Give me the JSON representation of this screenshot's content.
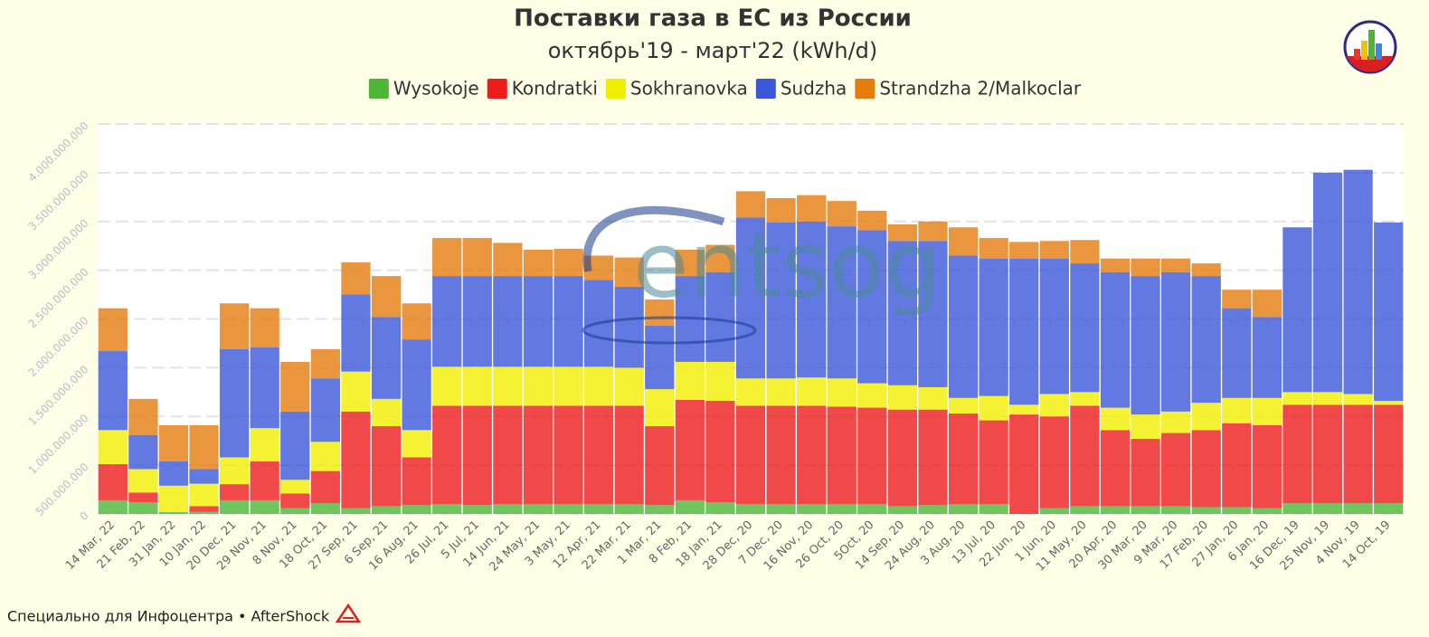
{
  "chart_data": {
    "type": "bar",
    "stacked": true,
    "title": "Поставки газа в ЕС из России",
    "subtitle": "октябрь'19 - март'22 (kWh/d)",
    "watermark": "entsog",
    "footer": "Специально для Инфоцентра • AfterShock",
    "categories": [
      "14 Mar, 22",
      "21 Feb, 22",
      "31 Jan, 22",
      "10 Jan, 22",
      "20 Dec, 21",
      "29 Nov, 21",
      "8 Nov, 21",
      "18 Oct, 21",
      "27 Sep, 21",
      "6 Sep, 21",
      "16 Aug, 21",
      "26 Jul, 21",
      "5 Jul, 21",
      "14 Jun, 21",
      "24 May, 21",
      "3 May, 21",
      "12 Apr, 21",
      "22 Mar, 21",
      "1 Mar, 21",
      "8 Feb, 21",
      "18 Jan, 21",
      "28 Dec, 20",
      "7 Dec, 20",
      "16 Nov, 20",
      "26 Oct, 20",
      "5Oct, 20",
      "14 Sep, 20",
      "24 Aug, 20",
      "3 Aug, 20",
      "13 Jul, 20",
      "22 Jun, 20",
      "1 Jun, 20",
      "11 May, 20",
      "20 Apr, 20",
      "30 Mar, 20",
      "9 Mar, 20",
      "17 Feb, 20",
      "27 Jan, 20",
      "6 Jan, 20",
      "16 Dec, 19",
      "25 Nov, 19",
      "4 Nov, 19",
      "14 Oct, 19"
    ],
    "series": [
      {
        "name": "Wysokoje",
        "color": "#4db636",
        "values": [
          140000000,
          120000000,
          20000000,
          20000000,
          140000000,
          140000000,
          60000000,
          110000000,
          60000000,
          80000000,
          90000000,
          100000000,
          90000000,
          100000000,
          100000000,
          100000000,
          100000000,
          100000000,
          90000000,
          140000000,
          120000000,
          100000000,
          100000000,
          100000000,
          100000000,
          100000000,
          80000000,
          90000000,
          100000000,
          100000000,
          0,
          60000000,
          80000000,
          80000000,
          80000000,
          80000000,
          70000000,
          70000000,
          60000000,
          110000000,
          110000000,
          110000000,
          110000000
        ]
      },
      {
        "name": "Kondratki",
        "color": "#ee1b1b",
        "values": [
          370000000,
          100000000,
          0,
          60000000,
          165000000,
          400000000,
          150000000,
          330000000,
          990000000,
          820000000,
          490000000,
          1010000000,
          1020000000,
          1010000000,
          1010000000,
          1010000000,
          1010000000,
          1010000000,
          810000000,
          1030000000,
          1040000000,
          1010000000,
          1010000000,
          1010000000,
          1000000000,
          990000000,
          990000000,
          980000000,
          930000000,
          860000000,
          1020000000,
          940000000,
          1030000000,
          780000000,
          690000000,
          750000000,
          790000000,
          860000000,
          850000000,
          1010000000,
          1010000000,
          1010000000,
          1010000000
        ]
      },
      {
        "name": "Sokhranovka",
        "color": "#f2ee00",
        "values": [
          350000000,
          240000000,
          270000000,
          230000000,
          275000000,
          340000000,
          140000000,
          300000000,
          410000000,
          280000000,
          280000000,
          400000000,
          400000000,
          400000000,
          400000000,
          400000000,
          400000000,
          390000000,
          380000000,
          390000000,
          400000000,
          280000000,
          280000000,
          290000000,
          290000000,
          250000000,
          250000000,
          230000000,
          160000000,
          250000000,
          100000000,
          230000000,
          140000000,
          230000000,
          250000000,
          220000000,
          280000000,
          260000000,
          280000000,
          130000000,
          130000000,
          110000000,
          40000000
        ]
      },
      {
        "name": "Sudzha",
        "color": "#3a57d9",
        "values": [
          810000000,
          350000000,
          250000000,
          150000000,
          1110000000,
          830000000,
          700000000,
          650000000,
          790000000,
          840000000,
          930000000,
          930000000,
          930000000,
          930000000,
          930000000,
          930000000,
          890000000,
          830000000,
          650000000,
          880000000,
          920000000,
          1650000000,
          1600000000,
          1600000000,
          1560000000,
          1570000000,
          1480000000,
          1500000000,
          1460000000,
          1410000000,
          1500000000,
          1390000000,
          1320000000,
          1390000000,
          1420000000,
          1430000000,
          1300000000,
          920000000,
          830000000,
          1690000000,
          2250000000,
          2300000000,
          1830000000
        ]
      },
      {
        "name": "Strandzha 2/Malkoclar",
        "color": "#e47c0e",
        "values": [
          440000000,
          370000000,
          370000000,
          450000000,
          470000000,
          400000000,
          510000000,
          300000000,
          330000000,
          420000000,
          370000000,
          390000000,
          390000000,
          340000000,
          270000000,
          280000000,
          250000000,
          300000000,
          270000000,
          270000000,
          280000000,
          270000000,
          250000000,
          270000000,
          260000000,
          200000000,
          170000000,
          200000000,
          290000000,
          210000000,
          170000000,
          180000000,
          240000000,
          140000000,
          180000000,
          140000000,
          130000000,
          190000000,
          280000000,
          0,
          0,
          0,
          0
        ]
      }
    ],
    "ylim": [
      0,
      4000000000
    ],
    "yticks": [
      0,
      {
        "value": 500000000,
        "label": "500.000.000"
      },
      {
        "value": 1000000000,
        "label": "1.000.000.000"
      },
      {
        "value": 1500000000,
        "label": "1.500.000.000"
      },
      {
        "value": 2000000000,
        "label": "2.000.000.000"
      },
      {
        "value": 2500000000,
        "label": "2.500.000.000"
      },
      {
        "value": 3000000000,
        "label": "3.000.000.000"
      },
      {
        "value": 3500000000,
        "label": "3.500.000.000"
      },
      {
        "value": 4000000000,
        "label": "4.000.000.000"
      }
    ],
    "grid": true
  }
}
